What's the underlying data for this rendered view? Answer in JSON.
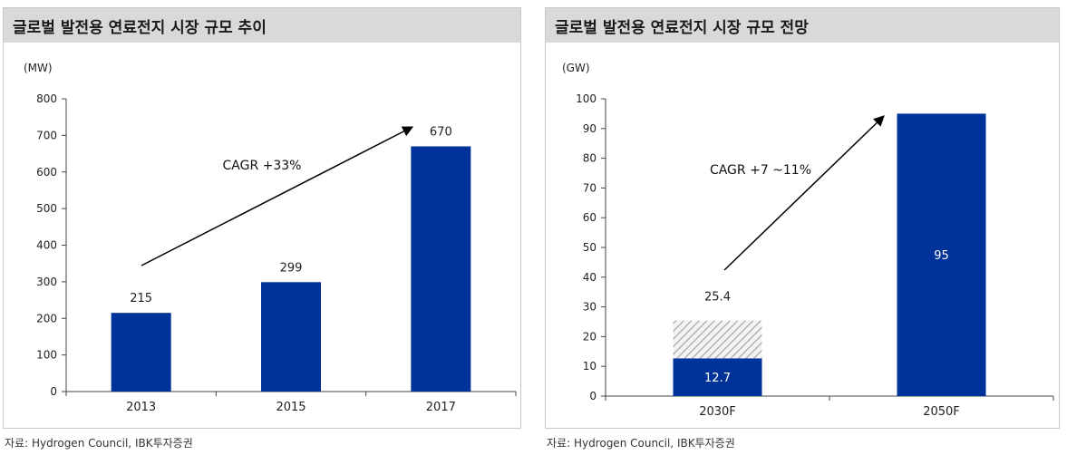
{
  "chart_data": [
    {
      "type": "bar",
      "title": "글로벌 발전용 연료전지 시장 규모 추이",
      "unit_label": "(MW)",
      "categories": [
        "2013",
        "2015",
        "2017"
      ],
      "series": [
        {
          "values": [
            215,
            299,
            670
          ],
          "color": "#003399",
          "data_labels": [
            "215",
            "299",
            "670"
          ]
        }
      ],
      "ylim": [
        0,
        800
      ],
      "yticks": [
        "0",
        "100",
        "200",
        "300",
        "400",
        "500",
        "600",
        "700",
        "800"
      ],
      "annotation": "CAGR +33%",
      "grid": false
    },
    {
      "type": "bar",
      "title": "글로벌 발전용 연료전지 시장 규모 전망",
      "unit_label": "(GW)",
      "categories": [
        "2030F",
        "2050F"
      ],
      "series": [
        {
          "values": [
            12.7,
            95
          ],
          "color": "#003399",
          "data_labels": [
            "12.7",
            "95"
          ]
        },
        {
          "values": [
            12.7,
            0
          ],
          "color": "hatched-gray",
          "total_label": "25.4"
        }
      ],
      "ylim": [
        0,
        100
      ],
      "yticks": [
        "0",
        "10",
        "20",
        "30",
        "40",
        "50",
        "60",
        "70",
        "80",
        "90",
        "100"
      ],
      "annotation": "CAGR +7 ~11%",
      "grid": false
    }
  ],
  "sources": {
    "left": "자료: Hydrogen Council, IBK투자증권",
    "right": "자료: Hydrogen Council, IBK투자증권"
  }
}
